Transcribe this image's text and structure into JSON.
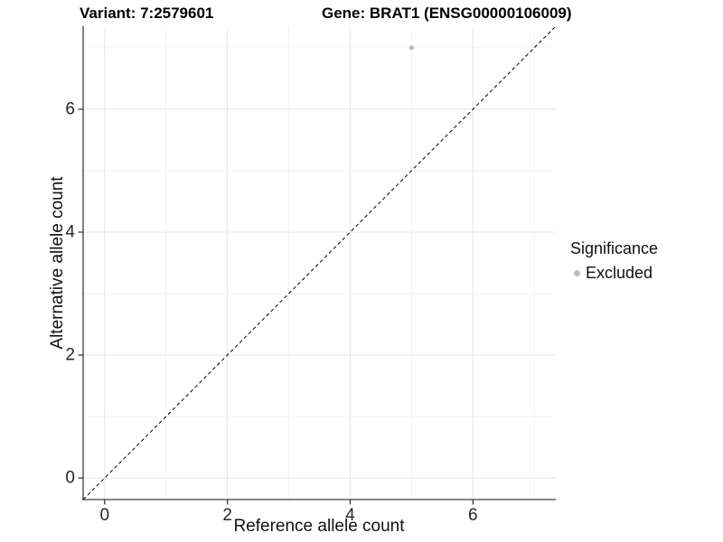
{
  "chart_data": {
    "type": "scatter",
    "title_left": "Variant: 7:2579601",
    "title_right": "Gene: BRAT1 (ENSG00000106009)",
    "xlabel": "Reference allele count",
    "ylabel": "Alternative allele count",
    "xlim": [
      -0.35,
      7.35
    ],
    "ylim": [
      -0.35,
      7.35
    ],
    "x_major_ticks": [
      0,
      2,
      4,
      6
    ],
    "x_minor_ticks": [
      1,
      3,
      5,
      7
    ],
    "y_major_ticks": [
      0,
      2,
      4,
      6
    ],
    "y_minor_ticks": [
      1,
      3,
      5,
      7
    ],
    "grid": "major+minor",
    "series": [
      {
        "name": "Excluded",
        "color": "#bdbdbd",
        "marker": "circle",
        "points": [
          {
            "x": 5,
            "y": 7
          }
        ]
      }
    ],
    "reference_line": {
      "kind": "identity",
      "from": [
        -0.35,
        -0.35
      ],
      "to": [
        7.35,
        7.35
      ],
      "style": "dashed",
      "color": "#000000"
    },
    "legend": {
      "title": "Significance",
      "position": "right",
      "entries": [
        {
          "label": "Excluded",
          "color": "#bdbdbd"
        }
      ]
    },
    "colors": {
      "background": "#ffffff",
      "grid_major": "#e8e8e8",
      "grid_minor": "#f3f3f3",
      "axis_line": "#3d3d3d",
      "tick_text": "#262626",
      "title_text": "#000000"
    }
  }
}
